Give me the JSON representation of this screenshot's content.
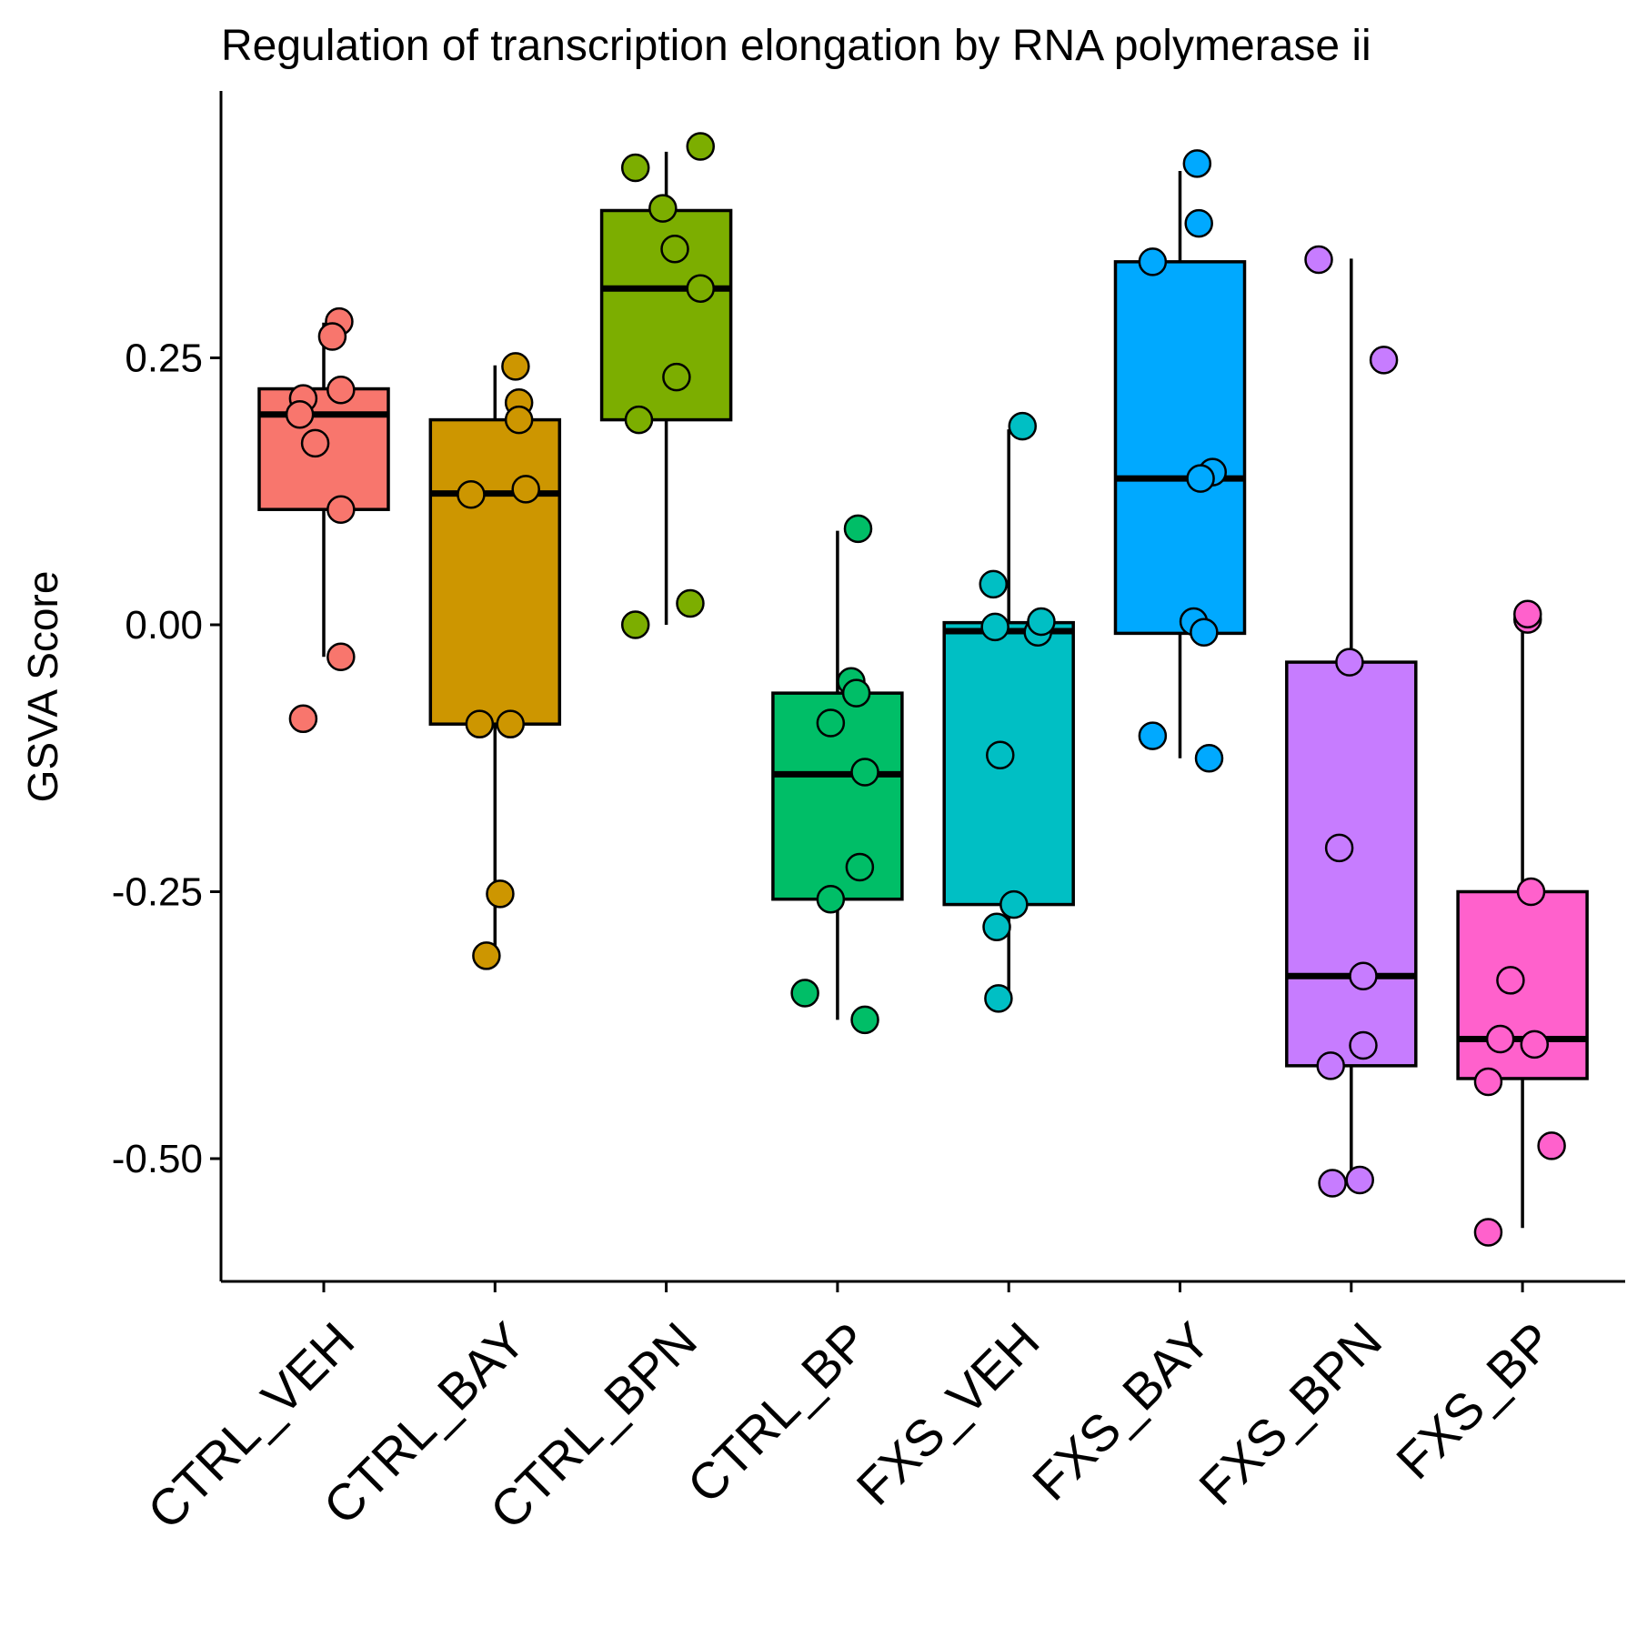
{
  "chart_data": {
    "type": "box",
    "title": "Regulation of transcription elongation by RNA polymerase ii",
    "xlabel": "",
    "ylabel": "GSVA Score",
    "ylim": [
      -0.615,
      0.5
    ],
    "yticks": [
      0.25,
      0.0,
      -0.25,
      -0.5
    ],
    "ytick_labels": [
      "0.25",
      "0.00",
      "-0.25",
      "-0.50"
    ],
    "grid": false,
    "legend": "none",
    "categories": [
      "CTRL_VEH",
      "CTRL_BAY",
      "CTRL_BPN",
      "CTRL_BP",
      "FXS_VEH",
      "FXS_BAY",
      "FXS_BPN",
      "FXS_BP"
    ],
    "colors": [
      "#F8766D",
      "#CD9600",
      "#7CAE00",
      "#00BE67",
      "#00BFC4",
      "#00A9FF",
      "#C77CFF",
      "#FF61CC"
    ],
    "boxes": [
      {
        "q1": 0.108,
        "median": 0.197,
        "q3": 0.221,
        "whisker_low": -0.03,
        "whisker_high": 0.283
      },
      {
        "q1": -0.093,
        "median": 0.123,
        "q3": 0.192,
        "whisker_low": -0.31,
        "whisker_high": 0.243
      },
      {
        "q1": 0.192,
        "median": 0.315,
        "q3": 0.388,
        "whisker_low": 0.0,
        "whisker_high": 0.443
      },
      {
        "q1": -0.257,
        "median": -0.14,
        "q3": -0.064,
        "whisker_low": -0.37,
        "whisker_high": 0.088
      },
      {
        "q1": -0.262,
        "median": -0.006,
        "q3": 0.002,
        "whisker_low": -0.35,
        "whisker_high": 0.183
      },
      {
        "q1": -0.008,
        "median": 0.137,
        "q3": 0.34,
        "whisker_low": -0.125,
        "whisker_high": 0.425
      },
      {
        "q1": -0.413,
        "median": -0.329,
        "q3": -0.035,
        "whisker_low": -0.523,
        "whisker_high": 0.343
      },
      {
        "q1": -0.425,
        "median": -0.388,
        "q3": -0.25,
        "whisker_low": -0.565,
        "whisker_high": 0.01
      }
    ],
    "points": [
      [
        [
          -0.12,
          0.212
        ],
        [
          -0.14,
          0.197
        ],
        [
          -0.05,
          0.17
        ],
        [
          0.1,
          0.108
        ],
        [
          0.1,
          0.22
        ],
        [
          0.09,
          0.284
        ],
        [
          0.05,
          0.27
        ],
        [
          0.1,
          -0.03
        ],
        [
          -0.12,
          -0.088
        ]
      ],
      [
        [
          0.12,
          0.242
        ],
        [
          0.14,
          0.208
        ],
        [
          0.14,
          0.192
        ],
        [
          0.18,
          0.127
        ],
        [
          -0.14,
          0.122
        ],
        [
          -0.09,
          -0.093
        ],
        [
          0.09,
          -0.093
        ],
        [
          0.03,
          -0.252
        ],
        [
          -0.05,
          -0.31
        ]
      ],
      [
        [
          0.2,
          0.448
        ],
        [
          -0.18,
          0.428
        ],
        [
          -0.02,
          0.39
        ],
        [
          0.05,
          0.352
        ],
        [
          0.2,
          0.315
        ],
        [
          0.06,
          0.232
        ],
        [
          -0.16,
          0.192
        ],
        [
          -0.18,
          0.0
        ],
        [
          0.14,
          0.02
        ]
      ],
      [
        [
          0.12,
          0.09
        ],
        [
          0.08,
          -0.053
        ],
        [
          0.11,
          -0.064
        ],
        [
          -0.04,
          -0.092
        ],
        [
          0.16,
          -0.138
        ],
        [
          0.13,
          -0.227
        ],
        [
          -0.04,
          -0.257
        ],
        [
          -0.19,
          -0.345
        ],
        [
          0.16,
          -0.37
        ]
      ],
      [
        [
          0.08,
          0.186
        ],
        [
          -0.09,
          0.038
        ],
        [
          -0.08,
          -0.002
        ],
        [
          0.17,
          -0.007
        ],
        [
          0.19,
          0.003
        ],
        [
          -0.05,
          -0.122
        ],
        [
          0.03,
          -0.262
        ],
        [
          -0.07,
          -0.283
        ],
        [
          -0.06,
          -0.35
        ]
      ],
      [
        [
          0.1,
          0.432
        ],
        [
          0.11,
          0.376
        ],
        [
          -0.16,
          0.34
        ],
        [
          0.19,
          0.143
        ],
        [
          0.12,
          0.137
        ],
        [
          0.08,
          0.003
        ],
        [
          0.14,
          -0.007
        ],
        [
          -0.16,
          -0.104
        ],
        [
          0.17,
          -0.125
        ]
      ],
      [
        [
          -0.19,
          0.342
        ],
        [
          0.19,
          0.248
        ],
        [
          -0.01,
          -0.035
        ],
        [
          -0.07,
          -0.209
        ],
        [
          0.07,
          -0.329
        ],
        [
          0.07,
          -0.394
        ],
        [
          -0.12,
          -0.413
        ],
        [
          -0.11,
          -0.523
        ],
        [
          0.05,
          -0.52
        ]
      ],
      [
        [
          0.03,
          0.005
        ],
        [
          0.03,
          0.01
        ],
        [
          0.05,
          -0.25
        ],
        [
          -0.07,
          -0.333
        ],
        [
          -0.13,
          -0.388
        ],
        [
          0.07,
          -0.393
        ],
        [
          -0.2,
          -0.428
        ],
        [
          0.17,
          -0.488
        ],
        [
          -0.2,
          -0.569
        ]
      ]
    ]
  }
}
